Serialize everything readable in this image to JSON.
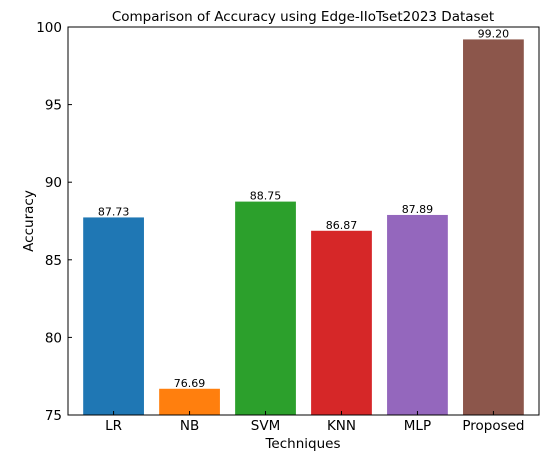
{
  "chart_data": {
    "type": "bar",
    "title": "Comparison of Accuracy using Edge-IIoTset2023 Dataset",
    "xlabel": "Techniques",
    "ylabel": "Accuracy",
    "categories": [
      "LR",
      "NB",
      "SVM",
      "KNN",
      "MLP",
      "Proposed"
    ],
    "values": [
      87.73,
      76.69,
      88.75,
      86.87,
      87.89,
      99.2
    ],
    "value_labels": [
      "87.73",
      "76.69",
      "88.75",
      "86.87",
      "87.89",
      "99.20"
    ],
    "colors": [
      "#1f77b4",
      "#ff7f0e",
      "#2ca02c",
      "#d62728",
      "#9467bd",
      "#8c564b"
    ],
    "ylim": [
      75,
      100
    ],
    "yticks": [
      75,
      80,
      85,
      90,
      95,
      100
    ],
    "ytick_labels": [
      "75",
      "80",
      "85",
      "90",
      "95",
      "100"
    ],
    "grid": false,
    "legend": "none"
  }
}
